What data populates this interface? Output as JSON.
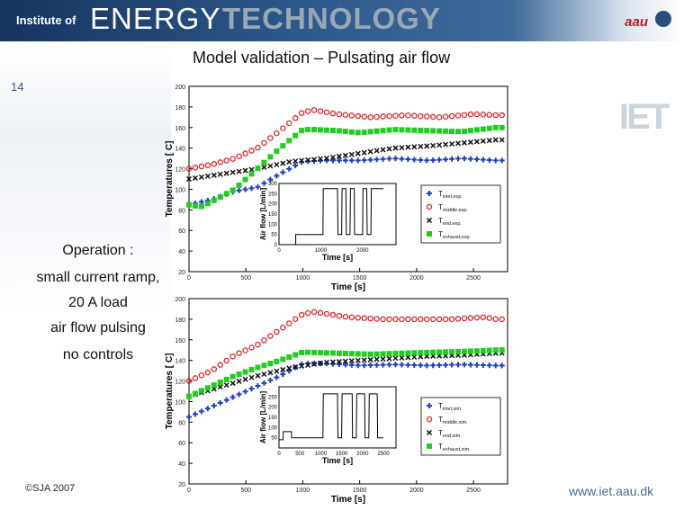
{
  "header": {
    "institute": "Institute of",
    "energy": "ENERGY",
    "technology": "TECHNOLOGY",
    "logo": "aau"
  },
  "title": "Model validation – Pulsating air flow",
  "slide_number": "14",
  "side_text": [
    "Operation :",
    "small current ramp,",
    "20 A load",
    "air flow pulsing",
    "no controls"
  ],
  "copyright": "©SJA 2007",
  "url": "www.iet.aau.dk",
  "brand_mark": "IET",
  "colors": {
    "inlet": "#1f3fbf",
    "middle": "#e0242a",
    "end": "#111111",
    "exhaust": "#22cc22"
  },
  "chart_data": [
    {
      "type": "scatter",
      "xlabel": "Time [s]",
      "ylabel": "Temperatures [ C]",
      "xlim": [
        0,
        2800
      ],
      "ylim": [
        20,
        200
      ],
      "xticks": [
        "0",
        "500",
        "1000",
        "1500",
        "2000",
        "2500"
      ],
      "yticks": [
        "20",
        "40",
        "60",
        "80",
        "100",
        "120",
        "140",
        "160",
        "180",
        "200"
      ],
      "legend": [
        "T_inlet,exp.",
        "T_middle,exp.",
        "T_end,exp.",
        "T_exhaust,exp."
      ],
      "legend_placement": "right",
      "series": [
        {
          "name": "T_inlet,exp.",
          "x": [
            0,
            200,
            400,
            600,
            800,
            1000,
            1200,
            1500,
            1800,
            2100,
            2400,
            2700
          ],
          "values": [
            85,
            90,
            98,
            102,
            115,
            127,
            128,
            128,
            130,
            128,
            130,
            128
          ]
        },
        {
          "name": "T_middle,exp.",
          "x": [
            0,
            200,
            400,
            600,
            800,
            1000,
            1100,
            1300,
            1600,
            1900,
            2200,
            2500,
            2700
          ],
          "values": [
            120,
            124,
            130,
            140,
            157,
            175,
            177,
            173,
            170,
            172,
            170,
            173,
            172
          ]
        },
        {
          "name": "T_end,exp.",
          "x": [
            0,
            300,
            600,
            900,
            1200,
            1500,
            1800,
            2100,
            2400,
            2700
          ],
          "values": [
            110,
            115,
            120,
            127,
            130,
            135,
            140,
            142,
            145,
            148
          ]
        },
        {
          "name": "T_exhaust,exp.",
          "x": [
            0,
            100,
            200,
            400,
            600,
            800,
            1000,
            1100,
            1300,
            1500,
            1800,
            2100,
            2400,
            2700
          ],
          "values": [
            85,
            83,
            88,
            100,
            120,
            140,
            158,
            158,
            157,
            155,
            158,
            157,
            156,
            160
          ]
        }
      ],
      "inset": {
        "xlabel": "Time [s]",
        "ylabel": "Air flow [L/min]",
        "xticks": [
          "0",
          "1000",
          "2000"
        ],
        "yticks": [
          "0",
          "50",
          "100",
          "150",
          "200",
          "250",
          "300"
        ],
        "x": [
          0,
          400,
          401,
          1050,
          1060,
          1400,
          1410,
          1500,
          1510,
          1600,
          1610,
          1700,
          1710,
          1800,
          1810,
          2000,
          2010,
          2100,
          2110,
          2200,
          2210,
          2500
        ],
        "values": [
          0,
          0,
          50,
          50,
          275,
          275,
          50,
          50,
          275,
          275,
          50,
          50,
          275,
          275,
          50,
          50,
          275,
          275,
          50,
          50,
          275,
          275
        ]
      }
    },
    {
      "type": "scatter",
      "xlabel": "Time [s]",
      "ylabel": "Temperatures [ C]",
      "xlim": [
        0,
        2800
      ],
      "ylim": [
        20,
        200
      ],
      "xticks": [
        "0",
        "500",
        "1000",
        "1500",
        "2000",
        "2500"
      ],
      "yticks": [
        "20",
        "40",
        "60",
        "80",
        "100",
        "120",
        "140",
        "160",
        "180",
        "200"
      ],
      "legend": [
        "T_inlet,sim.",
        "T_middle,sim.",
        "T_end,sim.",
        "T_exhaust,sim."
      ],
      "legend_placement": "right",
      "series": [
        {
          "name": "T_inlet,sim.",
          "x": [
            0,
            200,
            400,
            600,
            800,
            1000,
            1200,
            1500,
            1800,
            2100,
            2400,
            2700
          ],
          "values": [
            85,
            95,
            105,
            115,
            125,
            137,
            137,
            135,
            136,
            135,
            136,
            135
          ]
        },
        {
          "name": "T_middle,sim.",
          "x": [
            0,
            200,
            400,
            600,
            800,
            1000,
            1100,
            1400,
            1700,
            2000,
            2300,
            2600,
            2700
          ],
          "values": [
            120,
            130,
            145,
            155,
            170,
            185,
            187,
            182,
            180,
            180,
            180,
            182,
            180
          ]
        },
        {
          "name": "T_end,sim.",
          "x": [
            0,
            300,
            600,
            900,
            1200,
            1500,
            1800,
            2100,
            2400,
            2700
          ],
          "values": [
            105,
            115,
            125,
            133,
            138,
            140,
            142,
            144,
            145,
            147
          ]
        },
        {
          "name": "T_exhaust,sim.",
          "x": [
            0,
            200,
            400,
            600,
            800,
            1000,
            1300,
            1600,
            1900,
            2200,
            2500,
            2700
          ],
          "values": [
            105,
            115,
            125,
            133,
            140,
            148,
            147,
            146,
            147,
            148,
            149,
            150
          ]
        }
      ],
      "inset": {
        "xlabel": "Time [s]",
        "ylabel": "Air flow [L/min]",
        "xticks": [
          "0",
          "500",
          "1000",
          "1500",
          "2000",
          "2500"
        ],
        "yticks": [
          "50",
          "100",
          "150",
          "200",
          "250"
        ],
        "x": [
          0,
          100,
          101,
          300,
          301,
          1050,
          1060,
          1400,
          1410,
          1500,
          1510,
          1750,
          1760,
          1850,
          1860,
          2050,
          2060,
          2150,
          2160,
          2350,
          2360,
          2500
        ],
        "values": [
          40,
          40,
          80,
          80,
          50,
          50,
          265,
          265,
          50,
          50,
          265,
          265,
          50,
          50,
          265,
          265,
          50,
          50,
          265,
          265,
          50,
          50
        ]
      }
    }
  ]
}
